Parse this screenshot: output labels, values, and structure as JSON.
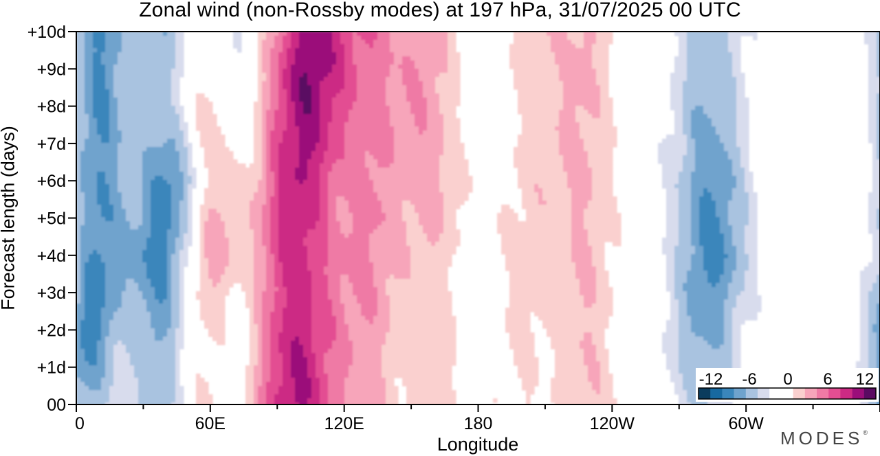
{
  "chart_data": {
    "type": "heatmap",
    "title": "Zonal wind (non-Rossby modes) at 197 hPa,  31/07/2025  00 UTC",
    "xlabel": "Longitude",
    "ylabel": "Forecast length (days)",
    "x_ticks": [
      "0",
      "60E",
      "120E",
      "180",
      "120W",
      "60W"
    ],
    "x_tick_lon": [
      0,
      60,
      120,
      180,
      240,
      300
    ],
    "xlim": [
      0,
      360
    ],
    "y_ticks": [
      "00",
      "+1d",
      "+2d",
      "+3d",
      "+4d",
      "+5d",
      "+6d",
      "+7d",
      "+8d",
      "+9d",
      "+10d"
    ],
    "ylim": [
      0,
      10
    ],
    "colorbar": {
      "labels": [
        "-12",
        "-6",
        "0",
        "6",
        "12"
      ],
      "levels": [
        -12,
        -6,
        0,
        6,
        12
      ],
      "colors": [
        "#0b3c5d",
        "#1769a0",
        "#3a86bb",
        "#6fa3cd",
        "#a9c3e0",
        "#d8dced",
        "#ffffff",
        "#ffffff",
        "#fad0cf",
        "#f7a5ba",
        "#ef7aa5",
        "#e34e92",
        "#cc2a84",
        "#9b0e7a",
        "#5a0b62"
      ]
    },
    "bands": [
      {
        "sign": -1,
        "amp": 7.5,
        "sigma": 9,
        "pts": [
          [
            0,
            3,
            -6
          ],
          [
            2,
            6,
            -9
          ],
          [
            4,
            10,
            -8
          ]
        ]
      },
      {
        "sign": -1,
        "amp": 8.5,
        "sigma": 11,
        "pts": [
          [
            0,
            37,
            -5
          ],
          [
            2,
            37,
            -7
          ],
          [
            4,
            37,
            -9
          ],
          [
            6,
            42,
            -9
          ],
          [
            8,
            38,
            -5
          ],
          [
            10,
            38,
            -6
          ]
        ]
      },
      {
        "sign": -1,
        "amp": 4,
        "sigma": 10,
        "pts": [
          [
            0,
            73,
            -3
          ],
          [
            1.5,
            72,
            -4
          ]
        ]
      },
      {
        "sign": 1,
        "amp": 8,
        "sigma": 9,
        "pts": [
          [
            0,
            57,
            3
          ],
          [
            2,
            58,
            4
          ],
          [
            4,
            62,
            7
          ],
          [
            6,
            62,
            6
          ],
          [
            8,
            60,
            5
          ],
          [
            10,
            56,
            3
          ]
        ]
      },
      {
        "sign": 1,
        "amp": 7,
        "sigma": 16,
        "pts": [
          [
            3,
            88,
            5
          ],
          [
            5,
            90,
            6
          ],
          [
            7,
            94,
            6
          ],
          [
            9,
            98,
            6
          ],
          [
            10,
            96,
            5
          ]
        ]
      },
      {
        "sign": 1,
        "amp": 8.5,
        "sigma": 12,
        "pts": [
          [
            5,
            100,
            6
          ],
          [
            7,
            104,
            7
          ],
          [
            9,
            106,
            8
          ],
          [
            10,
            108,
            8
          ]
        ]
      },
      {
        "sign": 1,
        "amp": 4,
        "sigma": 18,
        "pts": [
          [
            0,
            108,
            3
          ],
          [
            2,
            118,
            3
          ],
          [
            4,
            128,
            3
          ],
          [
            6,
            136,
            3
          ]
        ]
      },
      {
        "sign": 1,
        "amp": 4,
        "sigma": 9,
        "pts": [
          [
            0,
            132,
            3
          ],
          [
            2,
            132,
            3
          ]
        ]
      },
      {
        "sign": 1,
        "amp": 4,
        "sigma": 10,
        "pts": [
          [
            4,
            159,
            3
          ],
          [
            6,
            161,
            4
          ],
          [
            7,
            157,
            4
          ]
        ]
      },
      {
        "sign": -1,
        "amp": 5,
        "sigma": 10,
        "pts": [
          [
            4,
            233,
            2
          ],
          [
            5.5,
            232,
            2
          ],
          [
            7,
            232,
            2
          ]
        ]
      },
      {
        "sign": 1,
        "amp": 4.5,
        "sigma": 12,
        "pts": [
          [
            1,
            200,
            2
          ],
          [
            3,
            205,
            3
          ],
          [
            4.5,
            203,
            3
          ],
          [
            6,
            207,
            3
          ]
        ]
      },
      {
        "sign": -1,
        "amp": 4,
        "sigma": 8,
        "pts": [
          [
            0.5,
            227,
            2
          ],
          [
            2,
            226,
            2
          ]
        ]
      },
      {
        "sign": -1,
        "amp": 7.5,
        "sigma": 12,
        "pts": [
          [
            0,
            280,
            -4
          ],
          [
            2,
            282,
            -7
          ],
          [
            4,
            285,
            -9
          ],
          [
            6,
            284,
            -8
          ],
          [
            8,
            283,
            -6
          ],
          [
            10,
            284,
            -5
          ]
        ]
      }
    ]
  }
}
